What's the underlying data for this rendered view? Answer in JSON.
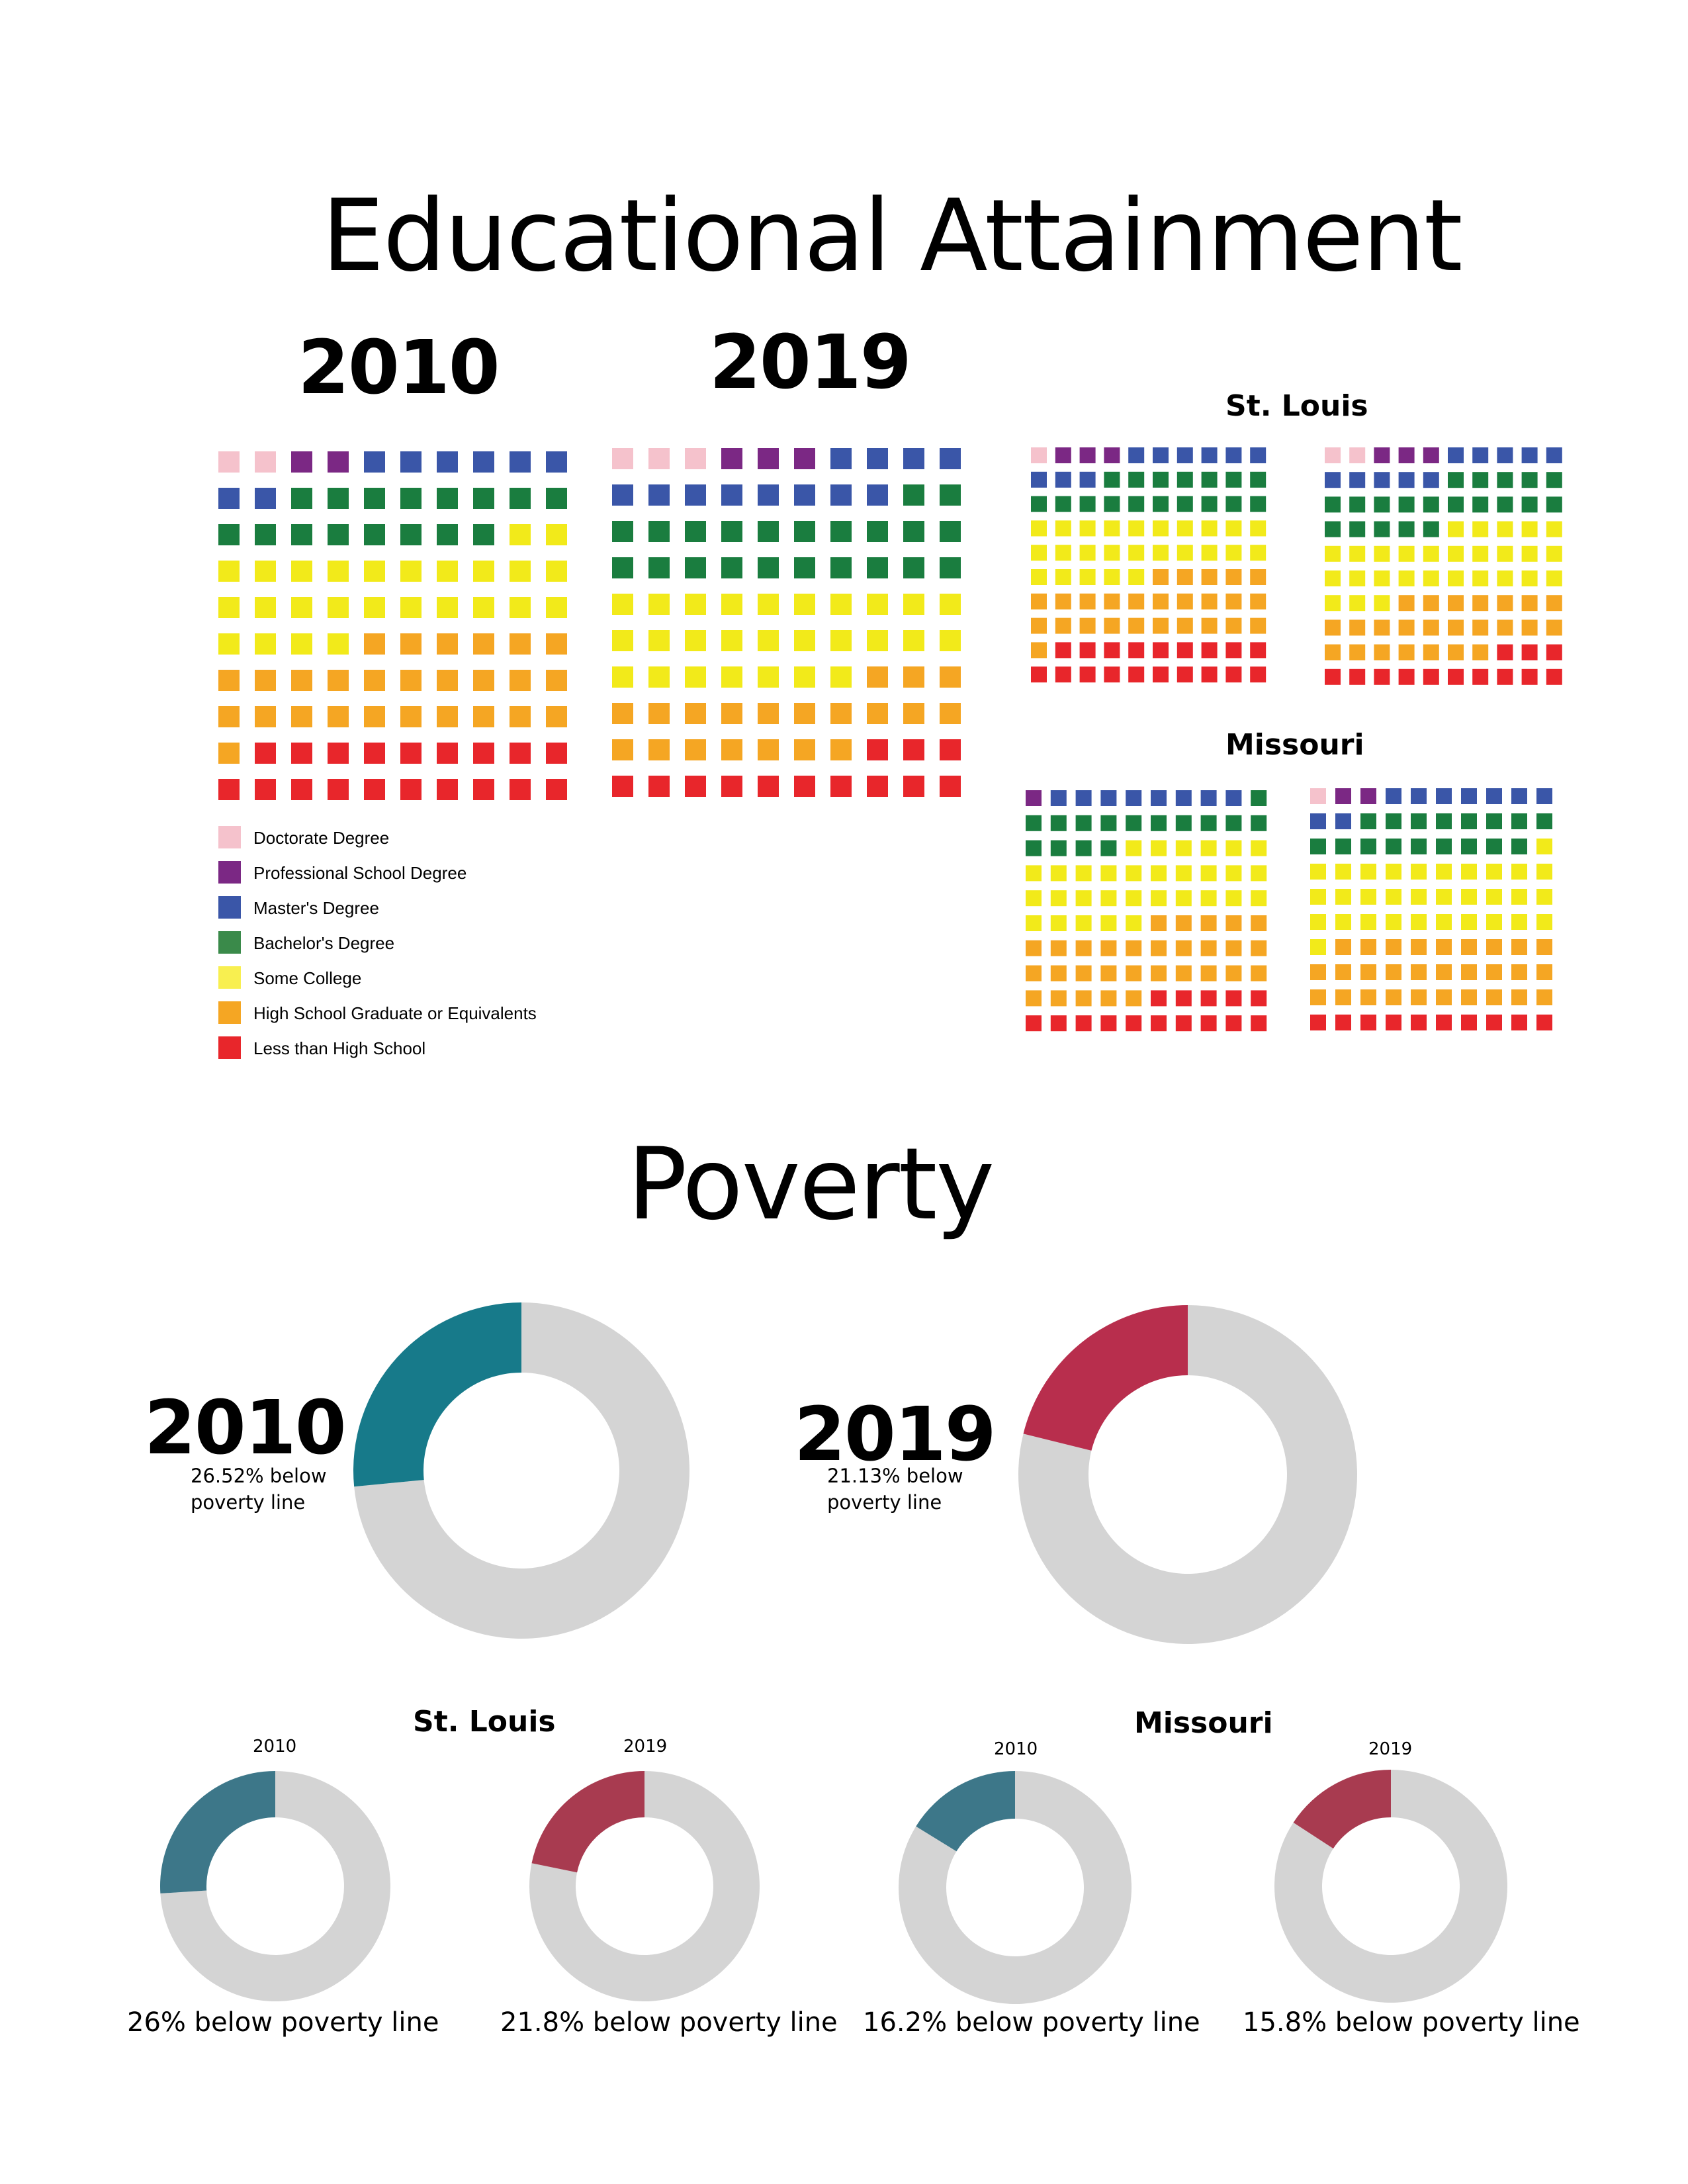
{
  "education": {
    "title": "Educational Attainment",
    "year_a": "2010",
    "year_b": "2019",
    "stlouis_label": "St. Louis",
    "missouri_label": "Missouri"
  },
  "poverty": {
    "title": "Poverty",
    "main_2010": {
      "year": "2010",
      "note_line1": "26.52% below",
      "note_line2": "poverty line"
    },
    "main_2019": {
      "year": "2019",
      "note_line1": "21.13% below",
      "note_line2": "poverty line"
    },
    "stlouis_label": "St. Louis",
    "missouri_label": "Missouri",
    "small": [
      {
        "year": "2010",
        "caption": "26% below poverty line"
      },
      {
        "year": "2019",
        "caption": "21.8% below poverty line"
      },
      {
        "year": "2010",
        "caption": "16.2% below poverty line"
      },
      {
        "year": "2019",
        "caption": "15.8% below poverty line"
      }
    ]
  },
  "colors": {
    "doctorate": "#f5c2cc",
    "professional": "#7b2884",
    "masters": "#3a56a8",
    "bachelors": "#1a7d3f",
    "some_college": "#f2ea1a",
    "high_school": "#f5a623",
    "less_than_hs": "#e8262b",
    "bachelors_legend": "#3a8a4a",
    "some_college_legend": "#f8ef50",
    "donut_base": "#d4d4d4",
    "teal_main": "#177a8a",
    "crimson_main": "#b82e4d",
    "teal_small": "#3d7789",
    "crimson_small": "#a83b50"
  },
  "chart_data": [
    {
      "type": "waffle",
      "title": "2010",
      "grid": "10x10",
      "series": [
        {
          "name": "Doctorate Degree",
          "values": [
            2
          ]
        },
        {
          "name": "Professional School Degree",
          "values": [
            2
          ]
        },
        {
          "name": "Master's Degree",
          "values": [
            8
          ]
        },
        {
          "name": "Bachelor's Degree",
          "values": [
            16
          ]
        },
        {
          "name": "Some College",
          "values": [
            26
          ]
        },
        {
          "name": "High School Graduate or Equivalents",
          "values": [
            27
          ]
        },
        {
          "name": "Less than High School",
          "values": [
            19
          ]
        }
      ]
    },
    {
      "type": "waffle",
      "title": "2019",
      "grid": "10x10",
      "series": [
        {
          "name": "Doctorate Degree",
          "values": [
            3
          ]
        },
        {
          "name": "Professional School Degree",
          "values": [
            3
          ]
        },
        {
          "name": "Master's Degree",
          "values": [
            12
          ]
        },
        {
          "name": "Bachelor's Degree",
          "values": [
            22
          ]
        },
        {
          "name": "Some College",
          "values": [
            27
          ]
        },
        {
          "name": "High School Graduate or Equivalents",
          "values": [
            20
          ]
        },
        {
          "name": "Less than High School",
          "values": [
            13
          ]
        }
      ]
    },
    {
      "type": "waffle",
      "title": "St. Louis",
      "grid": "10x10",
      "series": [
        {
          "name": "Doctorate Degree",
          "values": [
            1
          ]
        },
        {
          "name": "Professional School Degree",
          "values": [
            3
          ]
        },
        {
          "name": "Master's Degree",
          "values": [
            9
          ]
        },
        {
          "name": "Bachelor's Degree",
          "values": [
            17
          ]
        },
        {
          "name": "Some College",
          "values": [
            25
          ]
        },
        {
          "name": "High School Graduate or Equivalents",
          "values": [
            26
          ]
        },
        {
          "name": "Less than High School",
          "values": [
            19
          ]
        }
      ]
    },
    {
      "type": "waffle",
      "title": "St. Louis",
      "grid": "10x10",
      "series": [
        {
          "name": "Doctorate Degree",
          "values": [
            2
          ]
        },
        {
          "name": "Professional School Degree",
          "values": [
            3
          ]
        },
        {
          "name": "Master's Degree",
          "values": [
            10
          ]
        },
        {
          "name": "Bachelor's Degree",
          "values": [
            20
          ]
        },
        {
          "name": "Some College",
          "values": [
            28
          ]
        },
        {
          "name": "High School Graduate or Equivalents",
          "values": [
            24
          ]
        },
        {
          "name": "Less than High School",
          "values": [
            13
          ]
        }
      ]
    },
    {
      "type": "waffle",
      "title": "Missouri",
      "grid": "10x10",
      "series": [
        {
          "name": "Doctorate Degree",
          "values": [
            0
          ]
        },
        {
          "name": "Professional School Degree",
          "values": [
            1
          ]
        },
        {
          "name": "Master's Degree",
          "values": [
            8
          ]
        },
        {
          "name": "Bachelor's Degree",
          "values": [
            15
          ]
        },
        {
          "name": "Some College",
          "values": [
            31
          ]
        },
        {
          "name": "High School Graduate or Equivalents",
          "values": [
            30
          ]
        },
        {
          "name": "Less than High School",
          "values": [
            15
          ]
        }
      ]
    },
    {
      "type": "waffle",
      "title": "Missouri",
      "grid": "10x10",
      "series": [
        {
          "name": "Doctorate Degree",
          "values": [
            1
          ]
        },
        {
          "name": "Professional School Degree",
          "values": [
            2
          ]
        },
        {
          "name": "Master's Degree",
          "values": [
            9
          ]
        },
        {
          "name": "Bachelor's Degree",
          "values": [
            17
          ]
        },
        {
          "name": "Some College",
          "values": [
            32
          ]
        },
        {
          "name": "High School Graduate or Equivalents",
          "values": [
            29
          ]
        },
        {
          "name": "Less than High School",
          "values": [
            10
          ]
        }
      ]
    },
    {
      "type": "pie",
      "title": "2010",
      "categories": [
        "below poverty line",
        "other"
      ],
      "values": [
        26.52,
        73.48
      ]
    },
    {
      "type": "pie",
      "title": "2019",
      "categories": [
        "below poverty line",
        "other"
      ],
      "values": [
        21.13,
        78.87
      ]
    },
    {
      "type": "pie",
      "title": "2010",
      "categories": [
        "below poverty line",
        "other"
      ],
      "values": [
        26,
        74
      ]
    },
    {
      "type": "pie",
      "title": "2019",
      "categories": [
        "below poverty line",
        "other"
      ],
      "values": [
        21.8,
        78.2
      ]
    },
    {
      "type": "pie",
      "title": "2010",
      "categories": [
        "below poverty line",
        "other"
      ],
      "values": [
        16.2,
        83.8
      ]
    },
    {
      "type": "pie",
      "title": "2019",
      "categories": [
        "below poverty line",
        "other"
      ],
      "values": [
        15.8,
        84.2
      ]
    }
  ]
}
